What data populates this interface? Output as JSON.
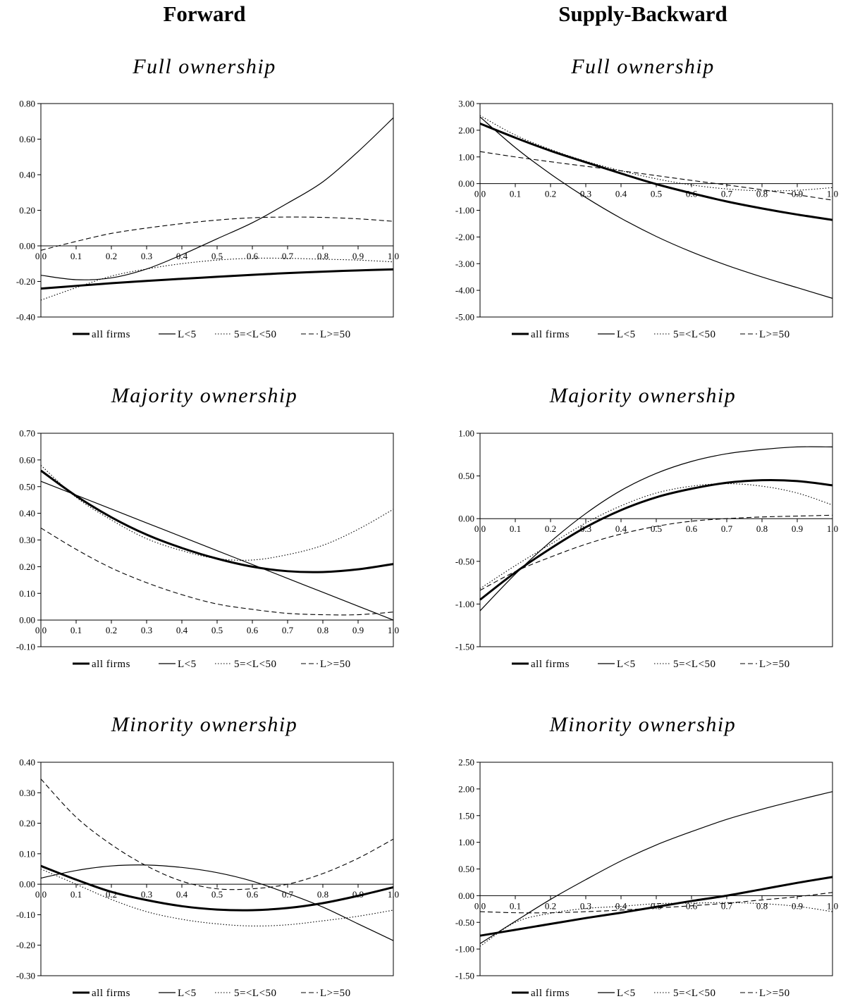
{
  "columns": [
    {
      "heading": "Forward"
    },
    {
      "heading": "Supply-Backward"
    }
  ],
  "series_styles": {
    "all firms": {
      "color": "#000000",
      "width": 3,
      "dash": ""
    },
    "L<5": {
      "color": "#000000",
      "width": 1.2,
      "dash": ""
    },
    "5=<L<50": {
      "color": "#000000",
      "width": 1.1,
      "dash": "1.5,2.5"
    },
    "L>=50": {
      "color": "#000000",
      "width": 1.1,
      "dash": "7,4"
    }
  },
  "chart_data": [
    {
      "type": "line",
      "title": "Full ownership",
      "column": "Forward",
      "ylim": [
        -0.4,
        0.8
      ],
      "yticks": [
        "0.80",
        "0.60",
        "0.40",
        "0.20",
        "0.00",
        "-0.20",
        "-0.40"
      ],
      "xticks": [
        "0.0",
        "0.1",
        "0.2",
        "0.3",
        "0.4",
        "0.5",
        "0.6",
        "0.7",
        "0.8",
        "0.9",
        "1.0"
      ],
      "x": [
        0,
        0.1,
        0.2,
        0.3,
        0.4,
        0.5,
        0.6,
        0.7,
        0.8,
        0.9,
        1.0
      ],
      "legend_placement": "bottom",
      "series": [
        {
          "name": "all firms",
          "values": [
            -0.24,
            -0.225,
            -0.21,
            -0.197,
            -0.185,
            -0.174,
            -0.163,
            -0.153,
            -0.145,
            -0.138,
            -0.132
          ]
        },
        {
          "name": "L<5",
          "values": [
            -0.165,
            -0.19,
            -0.18,
            -0.13,
            -0.05,
            0.04,
            0.13,
            0.24,
            0.36,
            0.53,
            0.72
          ]
        },
        {
          "name": "5=<L<50",
          "values": [
            -0.305,
            -0.235,
            -0.17,
            -0.13,
            -0.1,
            -0.08,
            -0.07,
            -0.07,
            -0.075,
            -0.08,
            -0.09
          ]
        },
        {
          "name": "L>=50",
          "values": [
            -0.025,
            0.025,
            0.07,
            0.1,
            0.125,
            0.145,
            0.158,
            0.162,
            0.16,
            0.152,
            0.138
          ]
        }
      ]
    },
    {
      "type": "line",
      "title": "Full ownership",
      "column": "Supply-Backward",
      "ylim": [
        -5,
        3
      ],
      "yticks": [
        "3.00",
        "2.00",
        "1.00",
        "0.00",
        "-1.00",
        "-2.00",
        "-3.00",
        "-4.00",
        "-5.00"
      ],
      "xticks": [
        "0.0",
        "0.1",
        "0.2",
        "0.3",
        "0.4",
        "0.5",
        "0.6",
        "0.7",
        "0.8",
        "0.9",
        "1.0"
      ],
      "x": [
        0,
        0.1,
        0.2,
        0.3,
        0.4,
        0.5,
        0.6,
        0.7,
        0.8,
        0.9,
        1.0
      ],
      "legend_placement": "bottom",
      "series": [
        {
          "name": "all firms",
          "values": [
            2.25,
            1.72,
            1.23,
            0.8,
            0.38,
            -0.02,
            -0.36,
            -0.67,
            -0.93,
            -1.16,
            -1.36
          ]
        },
        {
          "name": "L<5",
          "values": [
            2.5,
            1.35,
            0.36,
            -0.52,
            -1.3,
            -1.98,
            -2.56,
            -3.06,
            -3.5,
            -3.9,
            -4.3
          ]
        },
        {
          "name": "5=<L<50",
          "values": [
            2.55,
            1.82,
            1.28,
            0.84,
            0.48,
            0.18,
            -0.05,
            -0.2,
            -0.27,
            -0.25,
            -0.15
          ]
        },
        {
          "name": "L>=50",
          "values": [
            1.2,
            1.0,
            0.82,
            0.65,
            0.48,
            0.3,
            0.12,
            -0.05,
            -0.23,
            -0.42,
            -0.62
          ]
        }
      ]
    },
    {
      "type": "line",
      "title": "Majority ownership",
      "column": "Forward",
      "ylim": [
        -0.1,
        0.7
      ],
      "yticks": [
        "0.70",
        "0.60",
        "0.50",
        "0.40",
        "0.30",
        "0.20",
        "0.10",
        "0.00",
        "-0.10"
      ],
      "xticks": [
        "0.0",
        "0.1",
        "0.2",
        "0.3",
        "0.4",
        "0.5",
        "0.6",
        "0.7",
        "0.8",
        "0.9",
        "1.0"
      ],
      "x": [
        0,
        0.1,
        0.2,
        0.3,
        0.4,
        0.5,
        0.6,
        0.7,
        0.8,
        0.9,
        1.0
      ],
      "legend_placement": "bottom",
      "series": [
        {
          "name": "all firms",
          "values": [
            0.56,
            0.465,
            0.385,
            0.32,
            0.27,
            0.23,
            0.2,
            0.183,
            0.18,
            0.19,
            0.21
          ]
        },
        {
          "name": "L<5",
          "values": [
            0.52,
            0.468,
            0.416,
            0.364,
            0.312,
            0.26,
            0.208,
            0.156,
            0.104,
            0.052,
            0.0
          ]
        },
        {
          "name": "5=<L<50",
          "values": [
            0.58,
            0.46,
            0.375,
            0.305,
            0.26,
            0.23,
            0.225,
            0.245,
            0.28,
            0.34,
            0.415
          ]
        },
        {
          "name": "L>=50",
          "values": [
            0.345,
            0.265,
            0.195,
            0.14,
            0.095,
            0.06,
            0.04,
            0.025,
            0.02,
            0.02,
            0.03
          ]
        }
      ]
    },
    {
      "type": "line",
      "title": "Majority ownership",
      "column": "Supply-Backward",
      "ylim": [
        -1.5,
        1.0
      ],
      "yticks": [
        "1.00",
        "0.50",
        "0.00",
        "-0.50",
        "-1.00",
        "-1.50"
      ],
      "xticks": [
        "0.0",
        "0.1",
        "0.2",
        "0.3",
        "0.4",
        "0.5",
        "0.6",
        "0.7",
        "0.8",
        "0.9",
        "1.0"
      ],
      "x": [
        0,
        0.1,
        0.2,
        0.3,
        0.4,
        0.5,
        0.6,
        0.7,
        0.8,
        0.9,
        1.0
      ],
      "legend_placement": "bottom",
      "series": [
        {
          "name": "all firms",
          "values": [
            -0.95,
            -0.63,
            -0.35,
            -0.1,
            0.1,
            0.25,
            0.35,
            0.42,
            0.45,
            0.44,
            0.39
          ]
        },
        {
          "name": "L<5",
          "values": [
            -1.08,
            -0.65,
            -0.27,
            0.06,
            0.33,
            0.53,
            0.67,
            0.76,
            0.81,
            0.84,
            0.84
          ]
        },
        {
          "name": "5=<L<50",
          "values": [
            -0.82,
            -0.55,
            -0.3,
            -0.05,
            0.15,
            0.3,
            0.38,
            0.41,
            0.38,
            0.3,
            0.16
          ]
        },
        {
          "name": "L>=50",
          "values": [
            -0.84,
            -0.62,
            -0.45,
            -0.3,
            -0.18,
            -0.09,
            -0.03,
            0.0,
            0.02,
            0.03,
            0.04
          ]
        }
      ]
    },
    {
      "type": "line",
      "title": "Minority ownership",
      "column": "Forward",
      "ylim": [
        -0.3,
        0.4
      ],
      "yticks": [
        "0.40",
        "0.30",
        "0.20",
        "0.10",
        "0.00",
        "-0.10",
        "-0.20",
        "-0.30"
      ],
      "xticks": [
        "0.0",
        "0.1",
        "0.2",
        "0.3",
        "0.4",
        "0.5",
        "0.6",
        "0.7",
        "0.8",
        "0.9",
        "1.0"
      ],
      "x": [
        0,
        0.1,
        0.2,
        0.3,
        0.4,
        0.5,
        0.6,
        0.7,
        0.8,
        0.9,
        1.0
      ],
      "legend_placement": "bottom",
      "series": [
        {
          "name": "all firms",
          "values": [
            0.06,
            0.015,
            -0.025,
            -0.052,
            -0.072,
            -0.083,
            -0.085,
            -0.078,
            -0.062,
            -0.038,
            -0.01
          ]
        },
        {
          "name": "L<5",
          "values": [
            0.02,
            0.045,
            0.06,
            0.063,
            0.055,
            0.038,
            0.01,
            -0.03,
            -0.075,
            -0.13,
            -0.185
          ]
        },
        {
          "name": "5=<L<50",
          "values": [
            0.05,
            0.0,
            -0.05,
            -0.09,
            -0.115,
            -0.13,
            -0.137,
            -0.133,
            -0.12,
            -0.105,
            -0.085
          ]
        },
        {
          "name": "L>=50",
          "values": [
            0.345,
            0.22,
            0.13,
            0.06,
            0.01,
            -0.015,
            -0.015,
            0.0,
            0.035,
            0.085,
            0.148
          ]
        }
      ]
    },
    {
      "type": "line",
      "title": "Minority ownership",
      "column": "Supply-Backward",
      "ylim": [
        -1.5,
        2.5
      ],
      "yticks": [
        "2.50",
        "2.00",
        "1.50",
        "1.00",
        "0.50",
        "0.00",
        "-0.50",
        "-1.00",
        "-1.50"
      ],
      "xticks": [
        "0.0",
        "0.1",
        "0.2",
        "0.3",
        "0.4",
        "0.5",
        "0.6",
        "0.7",
        "0.8",
        "0.9",
        "1.0"
      ],
      "x": [
        0,
        0.1,
        0.2,
        0.3,
        0.4,
        0.5,
        0.6,
        0.7,
        0.8,
        0.9,
        1.0
      ],
      "legend_placement": "bottom",
      "series": [
        {
          "name": "all firms",
          "values": [
            -0.75,
            -0.64,
            -0.53,
            -0.42,
            -0.32,
            -0.21,
            -0.1,
            0.0,
            0.12,
            0.24,
            0.35
          ]
        },
        {
          "name": "L<5",
          "values": [
            -0.9,
            -0.48,
            -0.07,
            0.3,
            0.65,
            0.95,
            1.2,
            1.43,
            1.62,
            1.79,
            1.95
          ]
        },
        {
          "name": "5=<L<50",
          "values": [
            -0.95,
            -0.5,
            -0.33,
            -0.24,
            -0.2,
            -0.15,
            -0.14,
            -0.13,
            -0.15,
            -0.2,
            -0.3
          ]
        },
        {
          "name": "L>=50",
          "values": [
            -0.3,
            -0.32,
            -0.32,
            -0.3,
            -0.27,
            -0.23,
            -0.19,
            -0.14,
            -0.08,
            -0.02,
            0.06
          ]
        }
      ]
    }
  ]
}
